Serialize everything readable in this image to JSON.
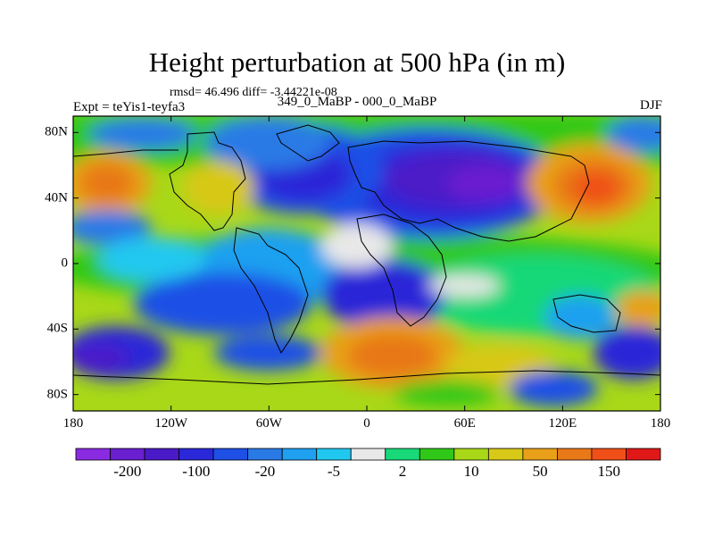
{
  "figure": {
    "title": "Height perturbation at 500 hPa (in m)",
    "stats_line": "rmsd= 46.496  diff= -3.44221e-08",
    "left_label": "Expt = teYis1-teyfa3",
    "center_label": "349_0_MaBP - 000_0_MaBP",
    "right_label": "DJF"
  },
  "map": {
    "lon_ticks": [
      "180",
      "120W",
      "60W",
      "0",
      "60E",
      "120E",
      "180"
    ],
    "lat_ticks": [
      "80N",
      "40N",
      "0",
      "40S",
      "80S"
    ],
    "lon_range": [
      -180,
      180
    ],
    "lat_range": [
      -90,
      90
    ]
  },
  "colorbar": {
    "colors": [
      "#8a2be2",
      "#6a1fd0",
      "#4b1ac8",
      "#2a28d8",
      "#1e50e6",
      "#2a7ae6",
      "#1fa0f0",
      "#20c8f0",
      "#e8e8e8",
      "#18d878",
      "#30c818",
      "#a8d818",
      "#d8c818",
      "#e8a018",
      "#e87818",
      "#f05018",
      "#e01818"
    ],
    "labels": [
      "-200",
      "-100",
      "-20",
      "-5",
      "2",
      "10",
      "50",
      "150"
    ]
  }
}
